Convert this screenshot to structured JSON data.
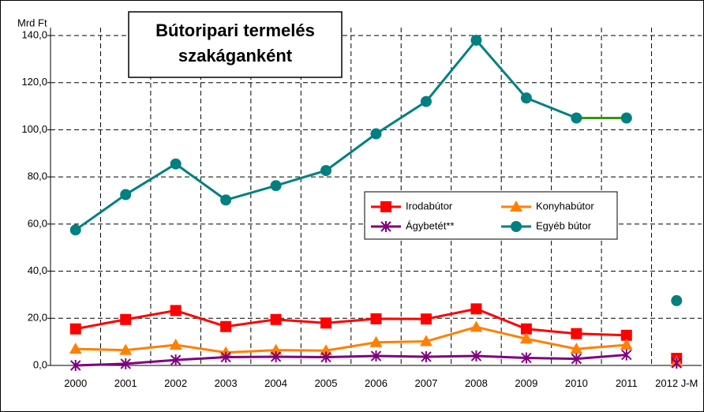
{
  "chart_data": {
    "type": "line",
    "title": [
      "Bútoripari termelés",
      "szakáganként"
    ],
    "y_axis_label": "Mrd Ft",
    "categories": [
      "2000",
      "2001",
      "2002",
      "2003",
      "2004",
      "2005",
      "2006",
      "2007",
      "2008",
      "2009",
      "2010",
      "2011",
      "2012 J-M"
    ],
    "series": [
      {
        "name": "Irodabútor",
        "color": "#ff0000",
        "marker": "square",
        "values": [
          15.5,
          19.5,
          23.3,
          16.5,
          19.5,
          18,
          19.8,
          19.7,
          24,
          15.5,
          13.5,
          12.8,
          3
        ]
      },
      {
        "name": "Konyhabútor",
        "color": "#ff8000",
        "marker": "triangle",
        "values": [
          7,
          6.5,
          8.7,
          5.5,
          6.5,
          6.3,
          9.8,
          10.2,
          16.3,
          11.3,
          7,
          8.7,
          1.5
        ]
      },
      {
        "name": "Ágybetét**",
        "color": "#800080",
        "marker": "asterisk",
        "values": [
          0,
          0.7,
          2.3,
          3.5,
          3.7,
          3.5,
          4,
          3.7,
          4,
          3.2,
          2.8,
          4.5,
          1
        ]
      },
      {
        "name": "Egyéb bútor",
        "color": "#008080",
        "marker": "circle",
        "values": [
          57.5,
          72.5,
          85.5,
          70.2,
          76.3,
          82.7,
          98.3,
          112,
          138,
          113.5,
          105,
          105,
          27.5
        ]
      }
    ],
    "highlight_segment_color": "#339900",
    "ylim": [
      0,
      140
    ],
    "yticks": [
      {
        "value": 0,
        "label": "0,0"
      },
      {
        "value": 20,
        "label": "20,0"
      },
      {
        "value": 40,
        "label": "40,0"
      },
      {
        "value": 60,
        "label": "60,0"
      },
      {
        "value": 80,
        "label": "80,0"
      },
      {
        "value": 100,
        "label": "100,0"
      },
      {
        "value": 120,
        "label": "120,0"
      },
      {
        "value": 140,
        "label": "140,0"
      }
    ],
    "grid": true
  }
}
